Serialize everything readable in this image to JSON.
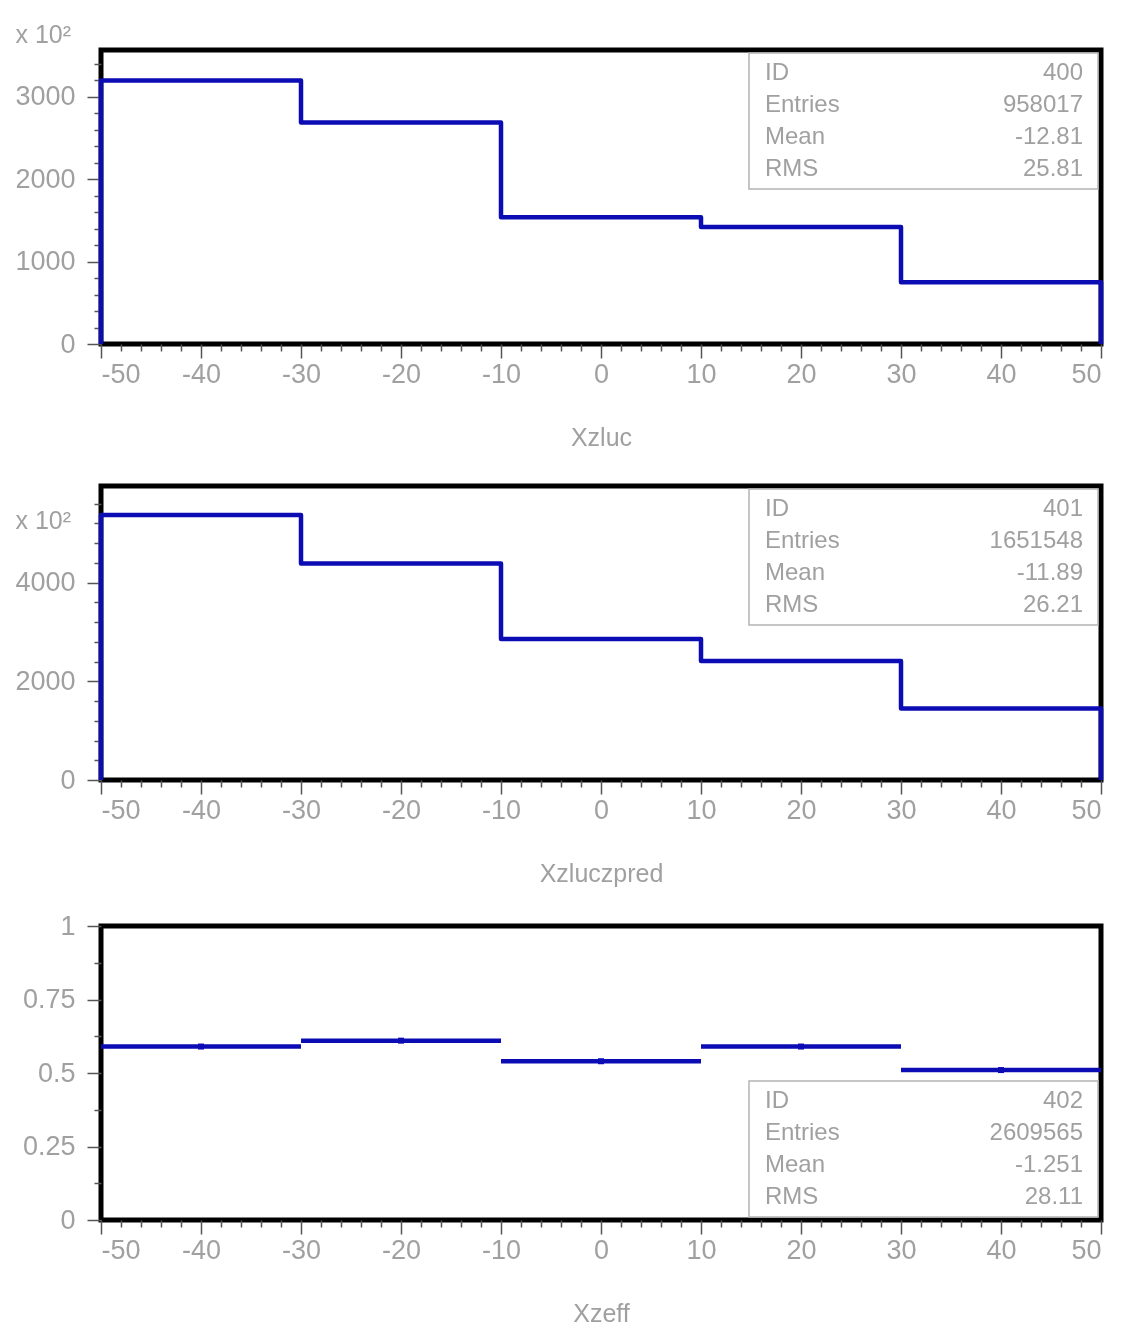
{
  "chart_data": [
    {
      "type": "histogram",
      "xlabel": "Xzluc",
      "ylabel": "x 10²",
      "color": "#0c0cb4",
      "bins": [
        -50,
        -30,
        -10,
        10,
        30,
        50
      ],
      "values": [
        3200,
        2690,
        1540,
        1420,
        750
      ],
      "xlim": [
        -50,
        50
      ],
      "ylim": [
        0,
        3570
      ],
      "xticks": [
        -50,
        {
          "value": -48,
          "label": null
        },
        {
          "value": -46,
          "label": null
        },
        {
          "value": -44,
          "label": null
        },
        {
          "value": -42,
          "label": null
        },
        -40,
        {
          "value": -38,
          "label": null
        },
        {
          "value": -36,
          "label": null
        },
        {
          "value": -34,
          "label": null
        },
        {
          "value": -32,
          "label": null
        },
        -30,
        {
          "value": -28,
          "label": null
        },
        {
          "value": -26,
          "label": null
        },
        {
          "value": -24,
          "label": null
        },
        {
          "value": -22,
          "label": null
        },
        -20,
        {
          "value": -18,
          "label": null
        },
        {
          "value": -16,
          "label": null
        },
        {
          "value": -14,
          "label": null
        },
        {
          "value": -12,
          "label": null
        },
        -10,
        {
          "value": -8,
          "label": null
        },
        {
          "value": -6,
          "label": null
        },
        {
          "value": -4,
          "label": null
        },
        {
          "value": -2,
          "label": null
        },
        0,
        {
          "value": 2,
          "label": null
        },
        {
          "value": 4,
          "label": null
        },
        {
          "value": 6,
          "label": null
        },
        {
          "value": 8,
          "label": null
        },
        10,
        {
          "value": 12,
          "label": null
        },
        {
          "value": 14,
          "label": null
        },
        {
          "value": 16,
          "label": null
        },
        {
          "value": 18,
          "label": null
        },
        20,
        {
          "value": 22,
          "label": null
        },
        {
          "value": 24,
          "label": null
        },
        {
          "value": 26,
          "label": null
        },
        {
          "value": 28,
          "label": null
        },
        30,
        {
          "value": 32,
          "label": null
        },
        {
          "value": 34,
          "label": null
        },
        {
          "value": 36,
          "label": null
        },
        {
          "value": 38,
          "label": null
        },
        40,
        {
          "value": 42,
          "label": null
        },
        {
          "value": 44,
          "label": null
        },
        {
          "value": 46,
          "label": null
        },
        {
          "value": 48,
          "label": null
        },
        50
      ],
      "yticks": [
        0,
        {
          "value": 200,
          "label": null
        },
        {
          "value": 400,
          "label": null
        },
        {
          "value": 600,
          "label": null
        },
        {
          "value": 800,
          "label": null
        },
        1000,
        {
          "value": 1200,
          "label": null
        },
        {
          "value": 1400,
          "label": null
        },
        {
          "value": 1600,
          "label": null
        },
        {
          "value": 1800,
          "label": null
        },
        2000,
        {
          "value": 2200,
          "label": null
        },
        {
          "value": 2400,
          "label": null
        },
        {
          "value": 2600,
          "label": null
        },
        {
          "value": 2800,
          "label": null
        },
        3000,
        {
          "value": 3200,
          "label": null
        },
        {
          "value": 3400,
          "label": null
        }
      ],
      "annotations": [
        "ID",
        "400",
        "Entries",
        "958017",
        "Mean",
        "-12.81",
        "RMS",
        "25.81"
      ]
    },
    {
      "type": "histogram",
      "xlabel": "Xzluczpred",
      "ylabel": "x 10²",
      "color": "#0c0cb4",
      "bins": [
        -50,
        -30,
        -10,
        10,
        30,
        50
      ],
      "values": [
        5370,
        4390,
        2860,
        2410,
        1450
      ],
      "xlim": [
        -50,
        50
      ],
      "ylim": [
        0,
        5960
      ],
      "xticks": [
        -50,
        {
          "value": -48,
          "label": null
        },
        {
          "value": -46,
          "label": null
        },
        {
          "value": -44,
          "label": null
        },
        {
          "value": -42,
          "label": null
        },
        -40,
        {
          "value": -38,
          "label": null
        },
        {
          "value": -36,
          "label": null
        },
        {
          "value": -34,
          "label": null
        },
        {
          "value": -32,
          "label": null
        },
        -30,
        {
          "value": -28,
          "label": null
        },
        {
          "value": -26,
          "label": null
        },
        {
          "value": -24,
          "label": null
        },
        {
          "value": -22,
          "label": null
        },
        -20,
        {
          "value": -18,
          "label": null
        },
        {
          "value": -16,
          "label": null
        },
        {
          "value": -14,
          "label": null
        },
        {
          "value": -12,
          "label": null
        },
        -10,
        {
          "value": -8,
          "label": null
        },
        {
          "value": -6,
          "label": null
        },
        {
          "value": -4,
          "label": null
        },
        {
          "value": -2,
          "label": null
        },
        0,
        {
          "value": 2,
          "label": null
        },
        {
          "value": 4,
          "label": null
        },
        {
          "value": 6,
          "label": null
        },
        {
          "value": 8,
          "label": null
        },
        10,
        {
          "value": 12,
          "label": null
        },
        {
          "value": 14,
          "label": null
        },
        {
          "value": 16,
          "label": null
        },
        {
          "value": 18,
          "label": null
        },
        20,
        {
          "value": 22,
          "label": null
        },
        {
          "value": 24,
          "label": null
        },
        {
          "value": 26,
          "label": null
        },
        {
          "value": 28,
          "label": null
        },
        30,
        {
          "value": 32,
          "label": null
        },
        {
          "value": 34,
          "label": null
        },
        {
          "value": 36,
          "label": null
        },
        {
          "value": 38,
          "label": null
        },
        40,
        {
          "value": 42,
          "label": null
        },
        {
          "value": 44,
          "label": null
        },
        {
          "value": 46,
          "label": null
        },
        {
          "value": 48,
          "label": null
        },
        50
      ],
      "yticks": [
        0,
        {
          "value": 400,
          "label": null
        },
        {
          "value": 800,
          "label": null
        },
        {
          "value": 1200,
          "label": null
        },
        {
          "value": 1600,
          "label": null
        },
        2000,
        {
          "value": 2400,
          "label": null
        },
        {
          "value": 2800,
          "label": null
        },
        {
          "value": 3200,
          "label": null
        },
        {
          "value": 3600,
          "label": null
        },
        4000,
        {
          "value": 4400,
          "label": null
        },
        {
          "value": 4800,
          "label": null
        },
        {
          "value": 5200,
          "label": null
        },
        {
          "value": 5600,
          "label": null
        }
      ],
      "annotations": [
        "ID",
        "401",
        "Entries",
        "1651548",
        "Mean",
        "-11.89",
        "RMS",
        "26.21"
      ]
    },
    {
      "type": "scatter",
      "xlabel": "Xzeff",
      "color": "#0c0cb4",
      "marker": "square",
      "x": [
        -40,
        -20,
        0,
        20,
        40
      ],
      "values": [
        0.59,
        0.61,
        0.54,
        0.59,
        0.51
      ],
      "xerrors": [
        10,
        10,
        10,
        10,
        10
      ],
      "xlim": [
        -50,
        50
      ],
      "ylim": [
        0,
        1
      ],
      "xticks": [
        -50,
        {
          "value": -48,
          "label": null
        },
        {
          "value": -46,
          "label": null
        },
        {
          "value": -44,
          "label": null
        },
        {
          "value": -42,
          "label": null
        },
        -40,
        {
          "value": -38,
          "label": null
        },
        {
          "value": -36,
          "label": null
        },
        {
          "value": -34,
          "label": null
        },
        {
          "value": -32,
          "label": null
        },
        -30,
        {
          "value": -28,
          "label": null
        },
        {
          "value": -26,
          "label": null
        },
        {
          "value": -24,
          "label": null
        },
        {
          "value": -22,
          "label": null
        },
        -20,
        {
          "value": -18,
          "label": null
        },
        {
          "value": -16,
          "label": null
        },
        {
          "value": -14,
          "label": null
        },
        {
          "value": -12,
          "label": null
        },
        -10,
        {
          "value": -8,
          "label": null
        },
        {
          "value": -6,
          "label": null
        },
        {
          "value": -4,
          "label": null
        },
        {
          "value": -2,
          "label": null
        },
        0,
        {
          "value": 2,
          "label": null
        },
        {
          "value": 4,
          "label": null
        },
        {
          "value": 6,
          "label": null
        },
        {
          "value": 8,
          "label": null
        },
        10,
        {
          "value": 12,
          "label": null
        },
        {
          "value": 14,
          "label": null
        },
        {
          "value": 16,
          "label": null
        },
        {
          "value": 18,
          "label": null
        },
        20,
        {
          "value": 22,
          "label": null
        },
        {
          "value": 24,
          "label": null
        },
        {
          "value": 26,
          "label": null
        },
        {
          "value": 28,
          "label": null
        },
        30,
        {
          "value": 32,
          "label": null
        },
        {
          "value": 34,
          "label": null
        },
        {
          "value": 36,
          "label": null
        },
        {
          "value": 38,
          "label": null
        },
        40,
        {
          "value": 42,
          "label": null
        },
        {
          "value": 44,
          "label": null
        },
        {
          "value": 46,
          "label": null
        },
        {
          "value": 48,
          "label": null
        },
        50
      ],
      "yticks": [
        0,
        {
          "value": 0.125,
          "label": null
        },
        0.25,
        {
          "value": 0.375,
          "label": null
        },
        0.5,
        {
          "value": 0.625,
          "label": null
        },
        0.75,
        {
          "value": 0.875,
          "label": null
        },
        1
      ],
      "annotations": [
        "ID",
        "402",
        "Entries",
        "2609565",
        "Mean",
        "-1.251",
        "RMS",
        "28.11"
      ]
    }
  ]
}
